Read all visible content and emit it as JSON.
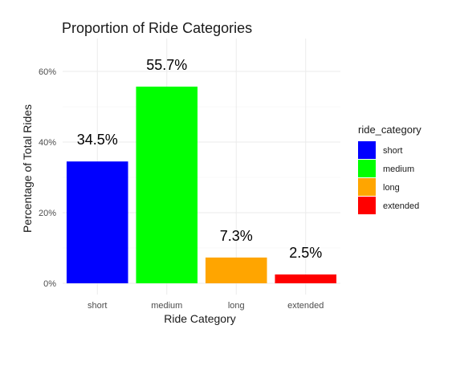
{
  "chart_data": {
    "type": "bar",
    "title": "Proportion of Ride Categories",
    "xlabel": "Ride Category",
    "ylabel": "Percentage of Total Rides",
    "categories": [
      "short",
      "medium",
      "long",
      "extended"
    ],
    "values": [
      34.5,
      55.7,
      7.3,
      2.5
    ],
    "data_labels": [
      "34.5%",
      "55.7%",
      "7.3%",
      "2.5%"
    ],
    "colors": [
      "#0000FF",
      "#00FF00",
      "#FFA500",
      "#FF0000"
    ],
    "ylim": [
      0,
      60
    ],
    "y_ticks": [
      0,
      20,
      40,
      60
    ],
    "y_tick_labels": [
      "0%",
      "20%",
      "40%",
      "60%"
    ],
    "grid": true,
    "legend": {
      "title": "ride_category",
      "position": "right",
      "entries": [
        "short",
        "medium",
        "long",
        "extended"
      ]
    }
  }
}
